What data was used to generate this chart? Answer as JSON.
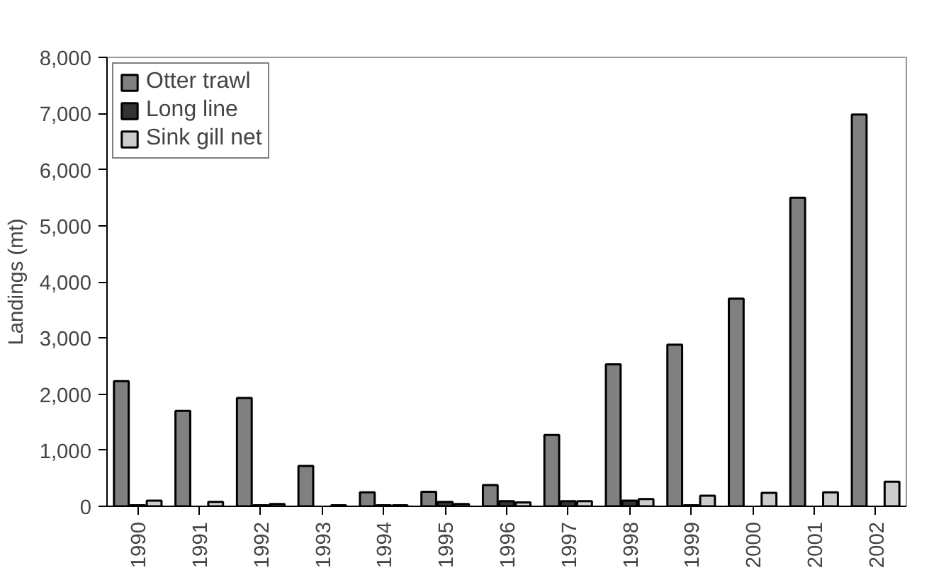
{
  "chart_data": {
    "type": "bar",
    "ylabel": "Landings (mt)",
    "categories": [
      "1990",
      "1991",
      "1992",
      "1993",
      "1994",
      "1995",
      "1996",
      "1997",
      "1998",
      "1999",
      "2000",
      "2001",
      "2002"
    ],
    "series": [
      {
        "name": "Otter trawl",
        "color": "#808080",
        "values": [
          2230,
          1700,
          1930,
          720,
          250,
          260,
          380,
          1270,
          2530,
          2880,
          3700,
          5500,
          6980
        ]
      },
      {
        "name": "Long line",
        "color": "#333333",
        "values": [
          20,
          null,
          20,
          null,
          20,
          80,
          90,
          90,
          100,
          20,
          null,
          null,
          null
        ]
      },
      {
        "name": "Sink gill net",
        "color": "#cccccc",
        "values": [
          100,
          80,
          40,
          20,
          20,
          40,
          70,
          90,
          130,
          190,
          240,
          250,
          440
        ]
      }
    ],
    "ylim": [
      0,
      8000
    ],
    "yticks": [
      {
        "value": 0,
        "label": "0"
      },
      {
        "value": 1000,
        "label": "1,000"
      },
      {
        "value": 2000,
        "label": "2,000"
      },
      {
        "value": 3000,
        "label": "3,000"
      },
      {
        "value": 4000,
        "label": "4,000"
      },
      {
        "value": 5000,
        "label": "5,000"
      },
      {
        "value": 6000,
        "label": "6,000"
      },
      {
        "value": 7000,
        "label": "7,000"
      },
      {
        "value": 8000,
        "label": "8,000"
      }
    ],
    "grid": false,
    "legend": "top left"
  }
}
